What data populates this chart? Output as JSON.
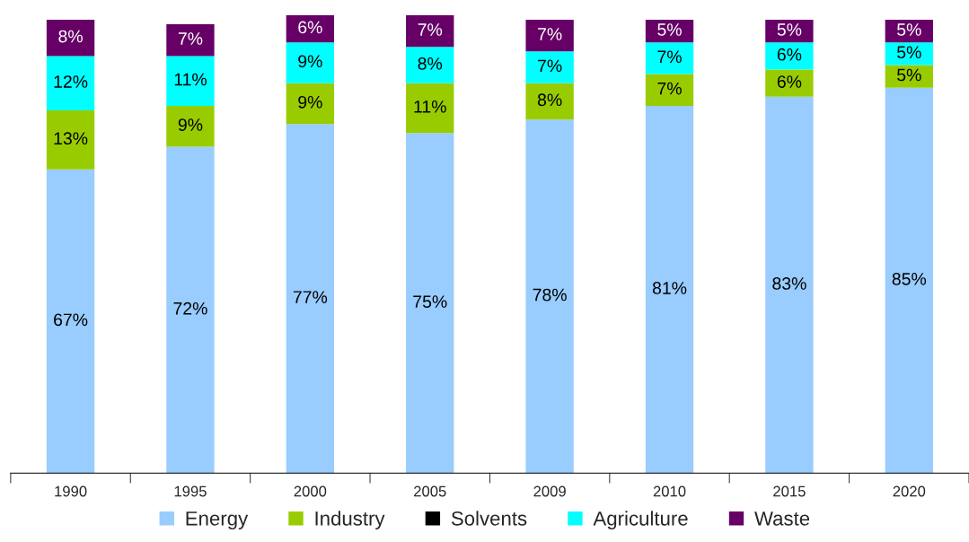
{
  "chart_data": {
    "type": "bar",
    "stacked": true,
    "legend": "bottom",
    "grid": false,
    "categories": [
      "1990",
      "1995",
      "2000",
      "2005",
      "2009",
      "2010",
      "2015",
      "2020"
    ],
    "series": [
      {
        "name": "Energy",
        "color": "#99ccff",
        "values": [
          67,
          72,
          77,
          75,
          78,
          81,
          83,
          85
        ],
        "value_labels": [
          "67%",
          "72%",
          "77%",
          "75%",
          "78%",
          "81%",
          "83%",
          "85%"
        ]
      },
      {
        "name": "Industry",
        "color": "#99cc00",
        "values": [
          13,
          9,
          9,
          11,
          8,
          7,
          6,
          5
        ],
        "value_labels": [
          "13%",
          "9%",
          "9%",
          "11%",
          "8%",
          "7%",
          "6%",
          "5%"
        ]
      },
      {
        "name": "Solvents",
        "color": "#000000",
        "values": [
          null,
          null,
          null,
          null,
          null,
          null,
          null,
          null
        ]
      },
      {
        "name": "Agriculture",
        "color": "#00ffff",
        "values": [
          12,
          11,
          9,
          8,
          7,
          7,
          6,
          5
        ],
        "value_labels": [
          "12%",
          "11%",
          "9%",
          "8%",
          "7%",
          "7%",
          "6%",
          "5%"
        ]
      },
      {
        "name": "Waste",
        "color": "#660066",
        "values": [
          8,
          7,
          6,
          7,
          7,
          5,
          5,
          5
        ],
        "value_labels": [
          "8%",
          "7%",
          "6%",
          "7%",
          "7%",
          "5%",
          "5%",
          "5%"
        ]
      }
    ]
  }
}
